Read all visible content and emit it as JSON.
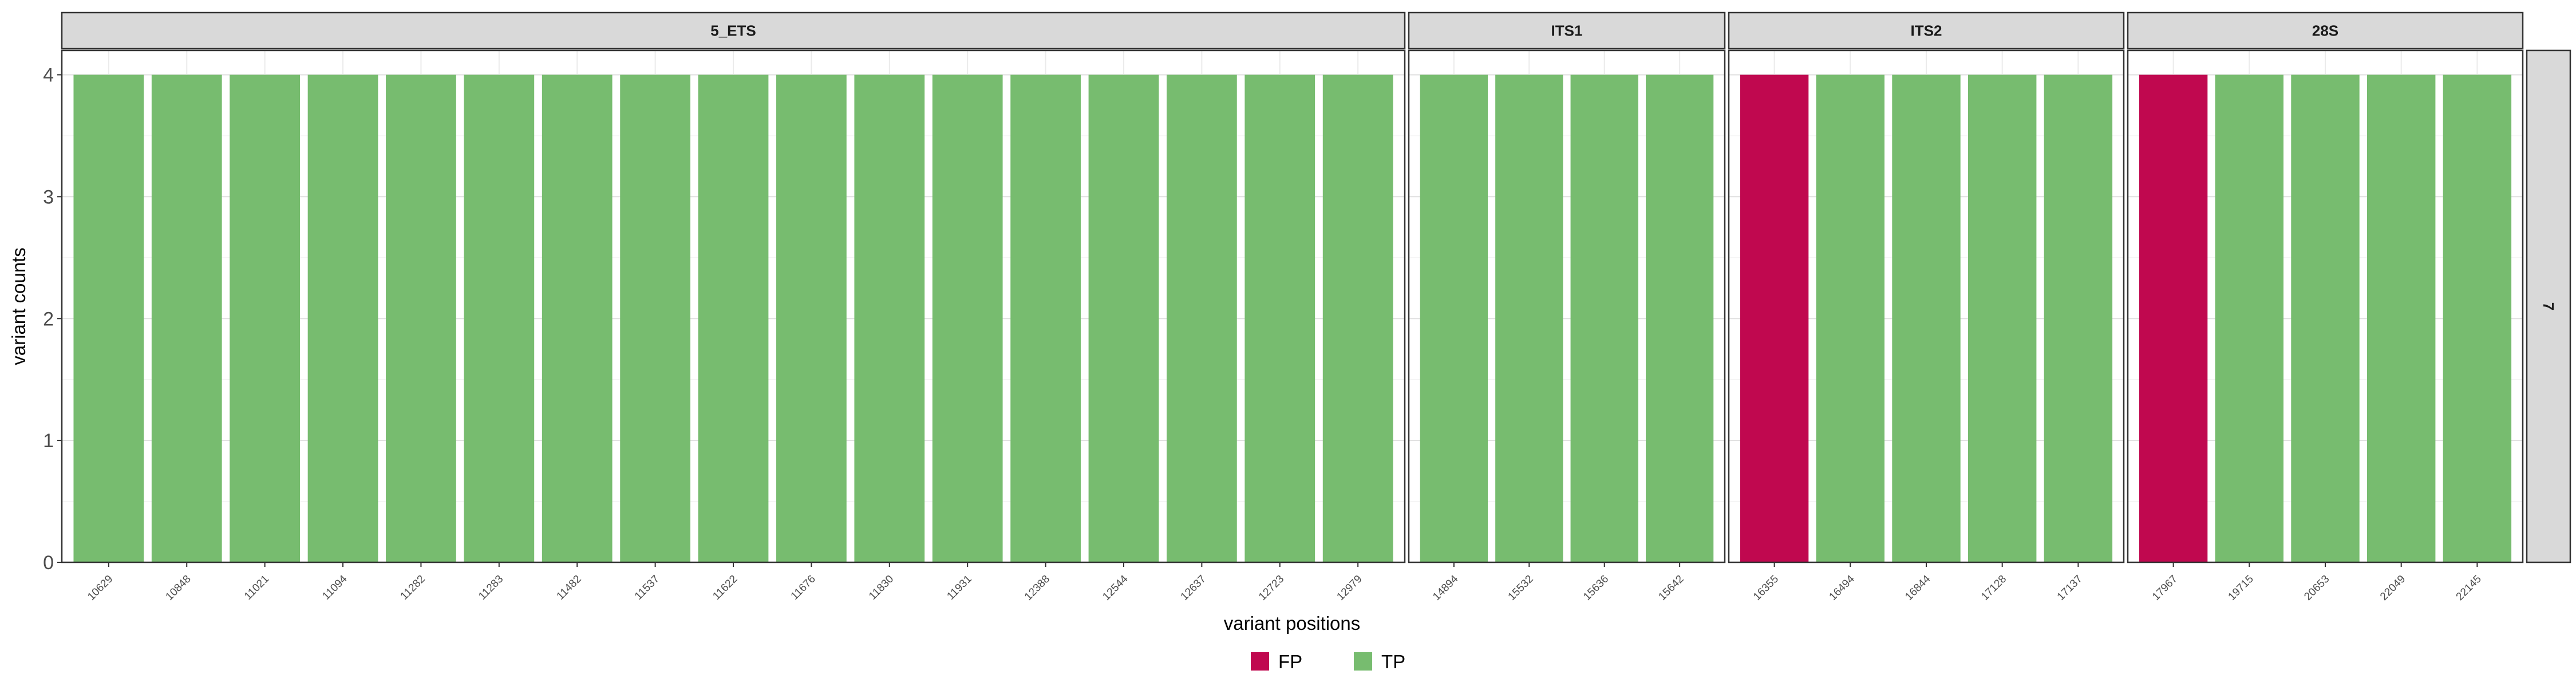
{
  "chart_data": {
    "type": "bar",
    "title": "",
    "xlabel": "variant positions",
    "ylabel": "variant counts",
    "ylim": [
      0,
      4.2
    ],
    "yticks": [
      0,
      1,
      2,
      3,
      4
    ],
    "grid": true,
    "legend_position": "bottom",
    "row_strip": "7",
    "colors": {
      "FP": "#c0084f",
      "TP": "#77bc6f"
    },
    "legend": [
      "FP",
      "TP"
    ],
    "panels": [
      {
        "name": "5_ETS",
        "categories": [
          "10629",
          "10848",
          "11021",
          "11094",
          "11282",
          "11283",
          "11482",
          "11537",
          "11622",
          "11676",
          "11830",
          "11931",
          "12388",
          "12544",
          "12637",
          "12723",
          "12979"
        ],
        "values": [
          4,
          4,
          4,
          4,
          4,
          4,
          4,
          4,
          4,
          4,
          4,
          4,
          4,
          4,
          4,
          4,
          4
        ],
        "labels": [
          "TP",
          "TP",
          "TP",
          "TP",
          "TP",
          "TP",
          "TP",
          "TP",
          "TP",
          "TP",
          "TP",
          "TP",
          "TP",
          "TP",
          "TP",
          "TP",
          "TP"
        ]
      },
      {
        "name": "ITS1",
        "categories": [
          "14894",
          "15532",
          "15636",
          "15642"
        ],
        "values": [
          4,
          4,
          4,
          4
        ],
        "labels": [
          "TP",
          "TP",
          "TP",
          "TP"
        ]
      },
      {
        "name": "ITS2",
        "categories": [
          "16355",
          "16494",
          "16844",
          "17128",
          "17137"
        ],
        "values": [
          4,
          4,
          4,
          4,
          4
        ],
        "labels": [
          "FP",
          "TP",
          "TP",
          "TP",
          "TP"
        ]
      },
      {
        "name": "28S",
        "categories": [
          "17967",
          "19715",
          "20653",
          "22049",
          "22145"
        ],
        "values": [
          4,
          4,
          4,
          4,
          4
        ],
        "labels": [
          "FP",
          "TP",
          "TP",
          "TP",
          "TP"
        ]
      }
    ]
  }
}
